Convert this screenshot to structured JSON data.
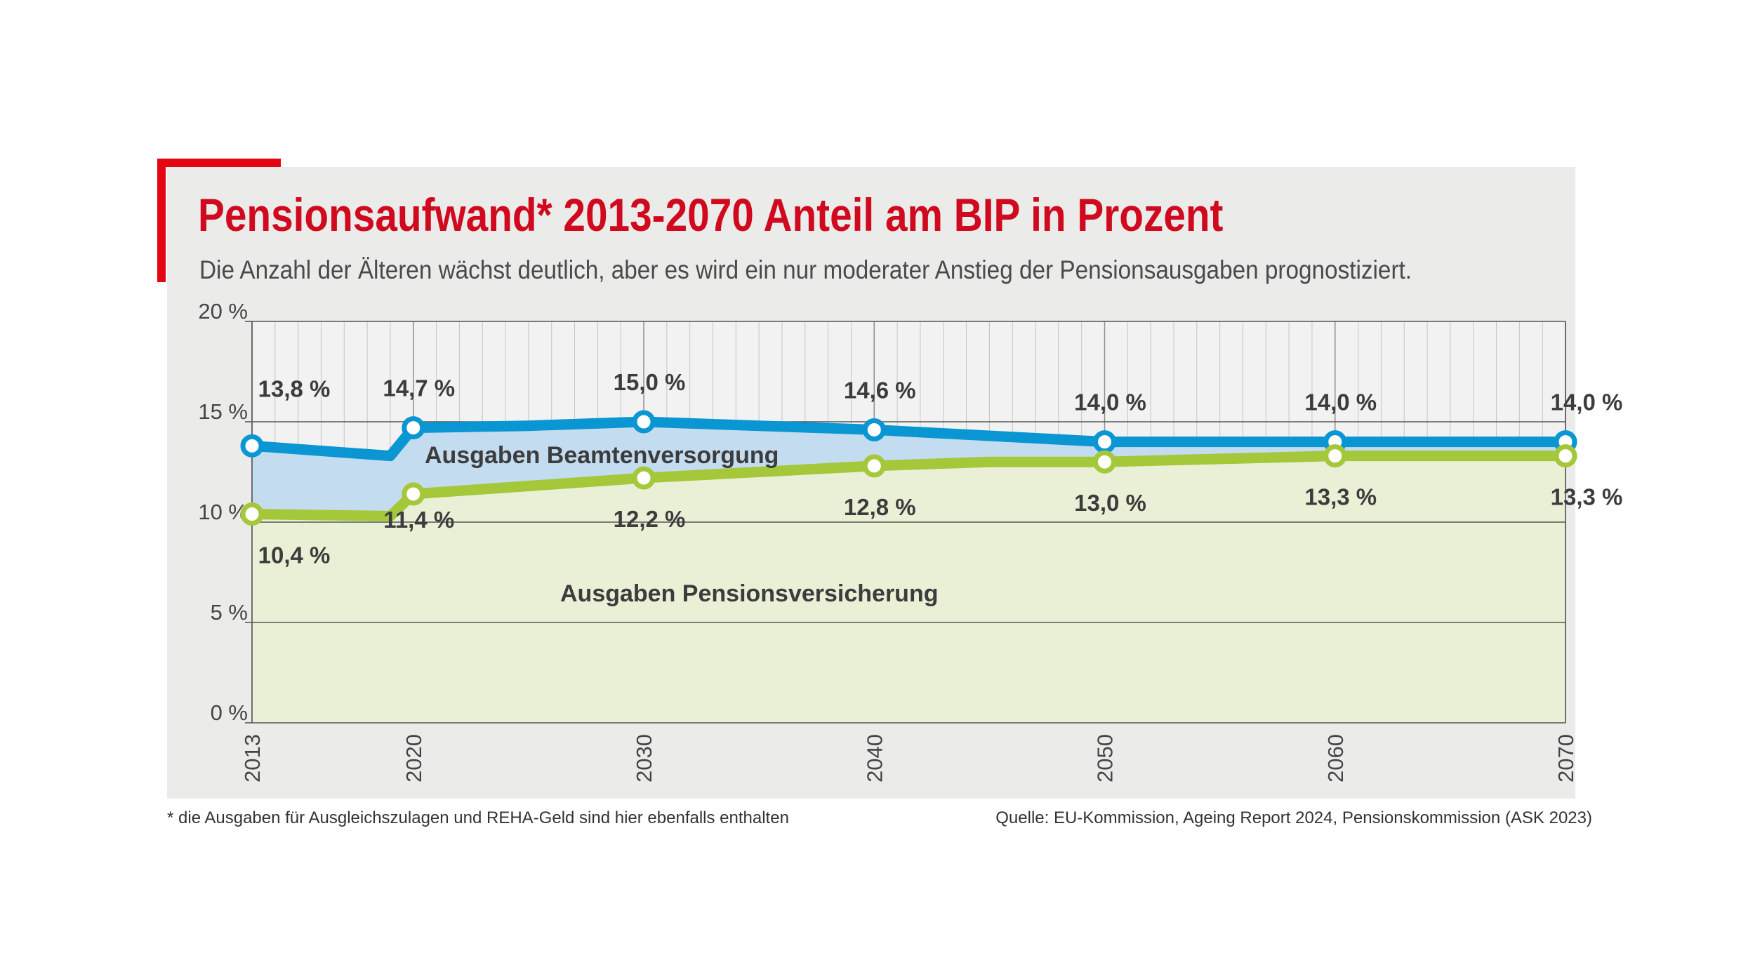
{
  "title": "Pensionsaufwand* 2013-2070 Anteil am BIP in Prozent",
  "subtitle": "Die Anzahl der Älteren wächst deutlich, aber es wird ein nur moderater Anstieg der Pensionsausgaben prognostiziert.",
  "footnote": "* die Ausgaben für Ausgleichszulagen und REHA-Geld sind hier ebenfalls enthalten",
  "source": "Quelle: EU-Kommission, Ageing Report 2024, Pensionskommission (ASK 2023)",
  "colors": {
    "accent": "#e30613",
    "title": "#d0091e",
    "beamten": "#0a96d2",
    "pension": "#a5c73a",
    "beamten_fill": "#c3dcf0",
    "pension_fill": "#eaf0d6"
  },
  "chart_data": {
    "type": "area",
    "x_ticks": [
      "2013",
      "2020",
      "2030",
      "2040",
      "2050",
      "2060",
      "2070"
    ],
    "y_ticks": [
      "0 %",
      "5 %",
      "10 %",
      "15 %",
      "20 %"
    ],
    "ylim": [
      0,
      20
    ],
    "xlim": [
      2013,
      2070
    ],
    "grid": true,
    "area_labels": [
      "Ausgaben Beamtenversorgung",
      "Ausgaben Pensionsversicherung"
    ],
    "series": [
      {
        "key": "beamten",
        "color": "#0a96d2",
        "points": [
          {
            "x": 2013,
            "y": 13.8,
            "label": "13,8 %",
            "marker": true
          },
          {
            "x": 2019,
            "y": 13.3,
            "label": "",
            "marker": false
          },
          {
            "x": 2020,
            "y": 14.7,
            "label": "14,7 %",
            "marker": true
          },
          {
            "x": 2025,
            "y": 14.8,
            "label": "",
            "marker": false
          },
          {
            "x": 2030,
            "y": 15.0,
            "label": "15,0 %",
            "marker": true
          },
          {
            "x": 2040,
            "y": 14.6,
            "label": "14,6 %",
            "marker": true
          },
          {
            "x": 2050,
            "y": 14.0,
            "label": "14,0 %",
            "marker": true
          },
          {
            "x": 2060,
            "y": 14.0,
            "label": "14,0 %",
            "marker": true
          },
          {
            "x": 2070,
            "y": 14.0,
            "label": "14,0 %",
            "marker": true
          }
        ]
      },
      {
        "key": "pension",
        "color": "#a5c73a",
        "points": [
          {
            "x": 2013,
            "y": 10.4,
            "label": "10,4 %",
            "marker": true
          },
          {
            "x": 2019,
            "y": 10.3,
            "label": "",
            "marker": false
          },
          {
            "x": 2020,
            "y": 11.4,
            "label": "11,4 %",
            "marker": true
          },
          {
            "x": 2030,
            "y": 12.2,
            "label": "12,2 %",
            "marker": true
          },
          {
            "x": 2040,
            "y": 12.8,
            "label": "12,8 %",
            "marker": true
          },
          {
            "x": 2045,
            "y": 13.0,
            "label": "",
            "marker": false
          },
          {
            "x": 2050,
            "y": 13.0,
            "label": "13,0 %",
            "marker": true
          },
          {
            "x": 2060,
            "y": 13.3,
            "label": "13,3 %",
            "marker": true
          },
          {
            "x": 2070,
            "y": 13.3,
            "label": "13,3 %",
            "marker": true
          }
        ]
      }
    ]
  }
}
